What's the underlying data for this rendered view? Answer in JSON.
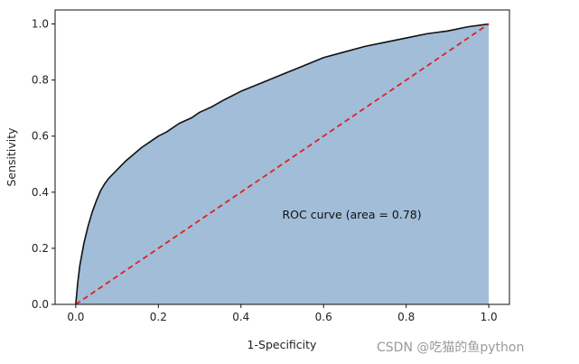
{
  "chart_data": {
    "type": "area",
    "title": "",
    "xlabel": "1-Specificity",
    "ylabel": "Sensitivity",
    "xlim": [
      -0.05,
      1.05
    ],
    "ylim": [
      0.0,
      1.05
    ],
    "xticks": [
      0.0,
      0.2,
      0.4,
      0.6,
      0.8,
      1.0
    ],
    "yticks": [
      0.0,
      0.2,
      0.4,
      0.6,
      0.8,
      1.0
    ],
    "xtick_labels": [
      "0.0",
      "0.2",
      "0.4",
      "0.6",
      "0.8",
      "1.0"
    ],
    "ytick_labels": [
      "0.0",
      "0.2",
      "0.4",
      "0.6",
      "0.8",
      "1.0"
    ],
    "grid": false,
    "annotation": {
      "text": "ROC curve (area = 0.78)",
      "x": 0.5,
      "y": 0.3
    },
    "series": [
      {
        "kind": "roc",
        "auc": 0.78,
        "line_color": "#111111",
        "fill_color": "#a1bdd8",
        "x": [
          0.0,
          0.005,
          0.01,
          0.02,
          0.03,
          0.04,
          0.05,
          0.06,
          0.07,
          0.08,
          0.1,
          0.12,
          0.14,
          0.16,
          0.18,
          0.2,
          0.22,
          0.25,
          0.28,
          0.3,
          0.33,
          0.36,
          0.4,
          0.45,
          0.5,
          0.55,
          0.6,
          0.65,
          0.7,
          0.75,
          0.8,
          0.85,
          0.9,
          0.95,
          1.0
        ],
        "y": [
          0.0,
          0.08,
          0.14,
          0.22,
          0.28,
          0.33,
          0.37,
          0.405,
          0.43,
          0.45,
          0.48,
          0.51,
          0.535,
          0.56,
          0.58,
          0.6,
          0.615,
          0.645,
          0.665,
          0.685,
          0.705,
          0.73,
          0.76,
          0.79,
          0.82,
          0.85,
          0.88,
          0.9,
          0.92,
          0.935,
          0.95,
          0.965,
          0.975,
          0.99,
          1.0
        ]
      },
      {
        "kind": "chance",
        "line_color": "#e02020",
        "dashed": true,
        "x": [
          0.0,
          1.0
        ],
        "y": [
          0.0,
          1.0
        ]
      }
    ]
  },
  "watermark": "CSDN @吃猫的鱼python"
}
